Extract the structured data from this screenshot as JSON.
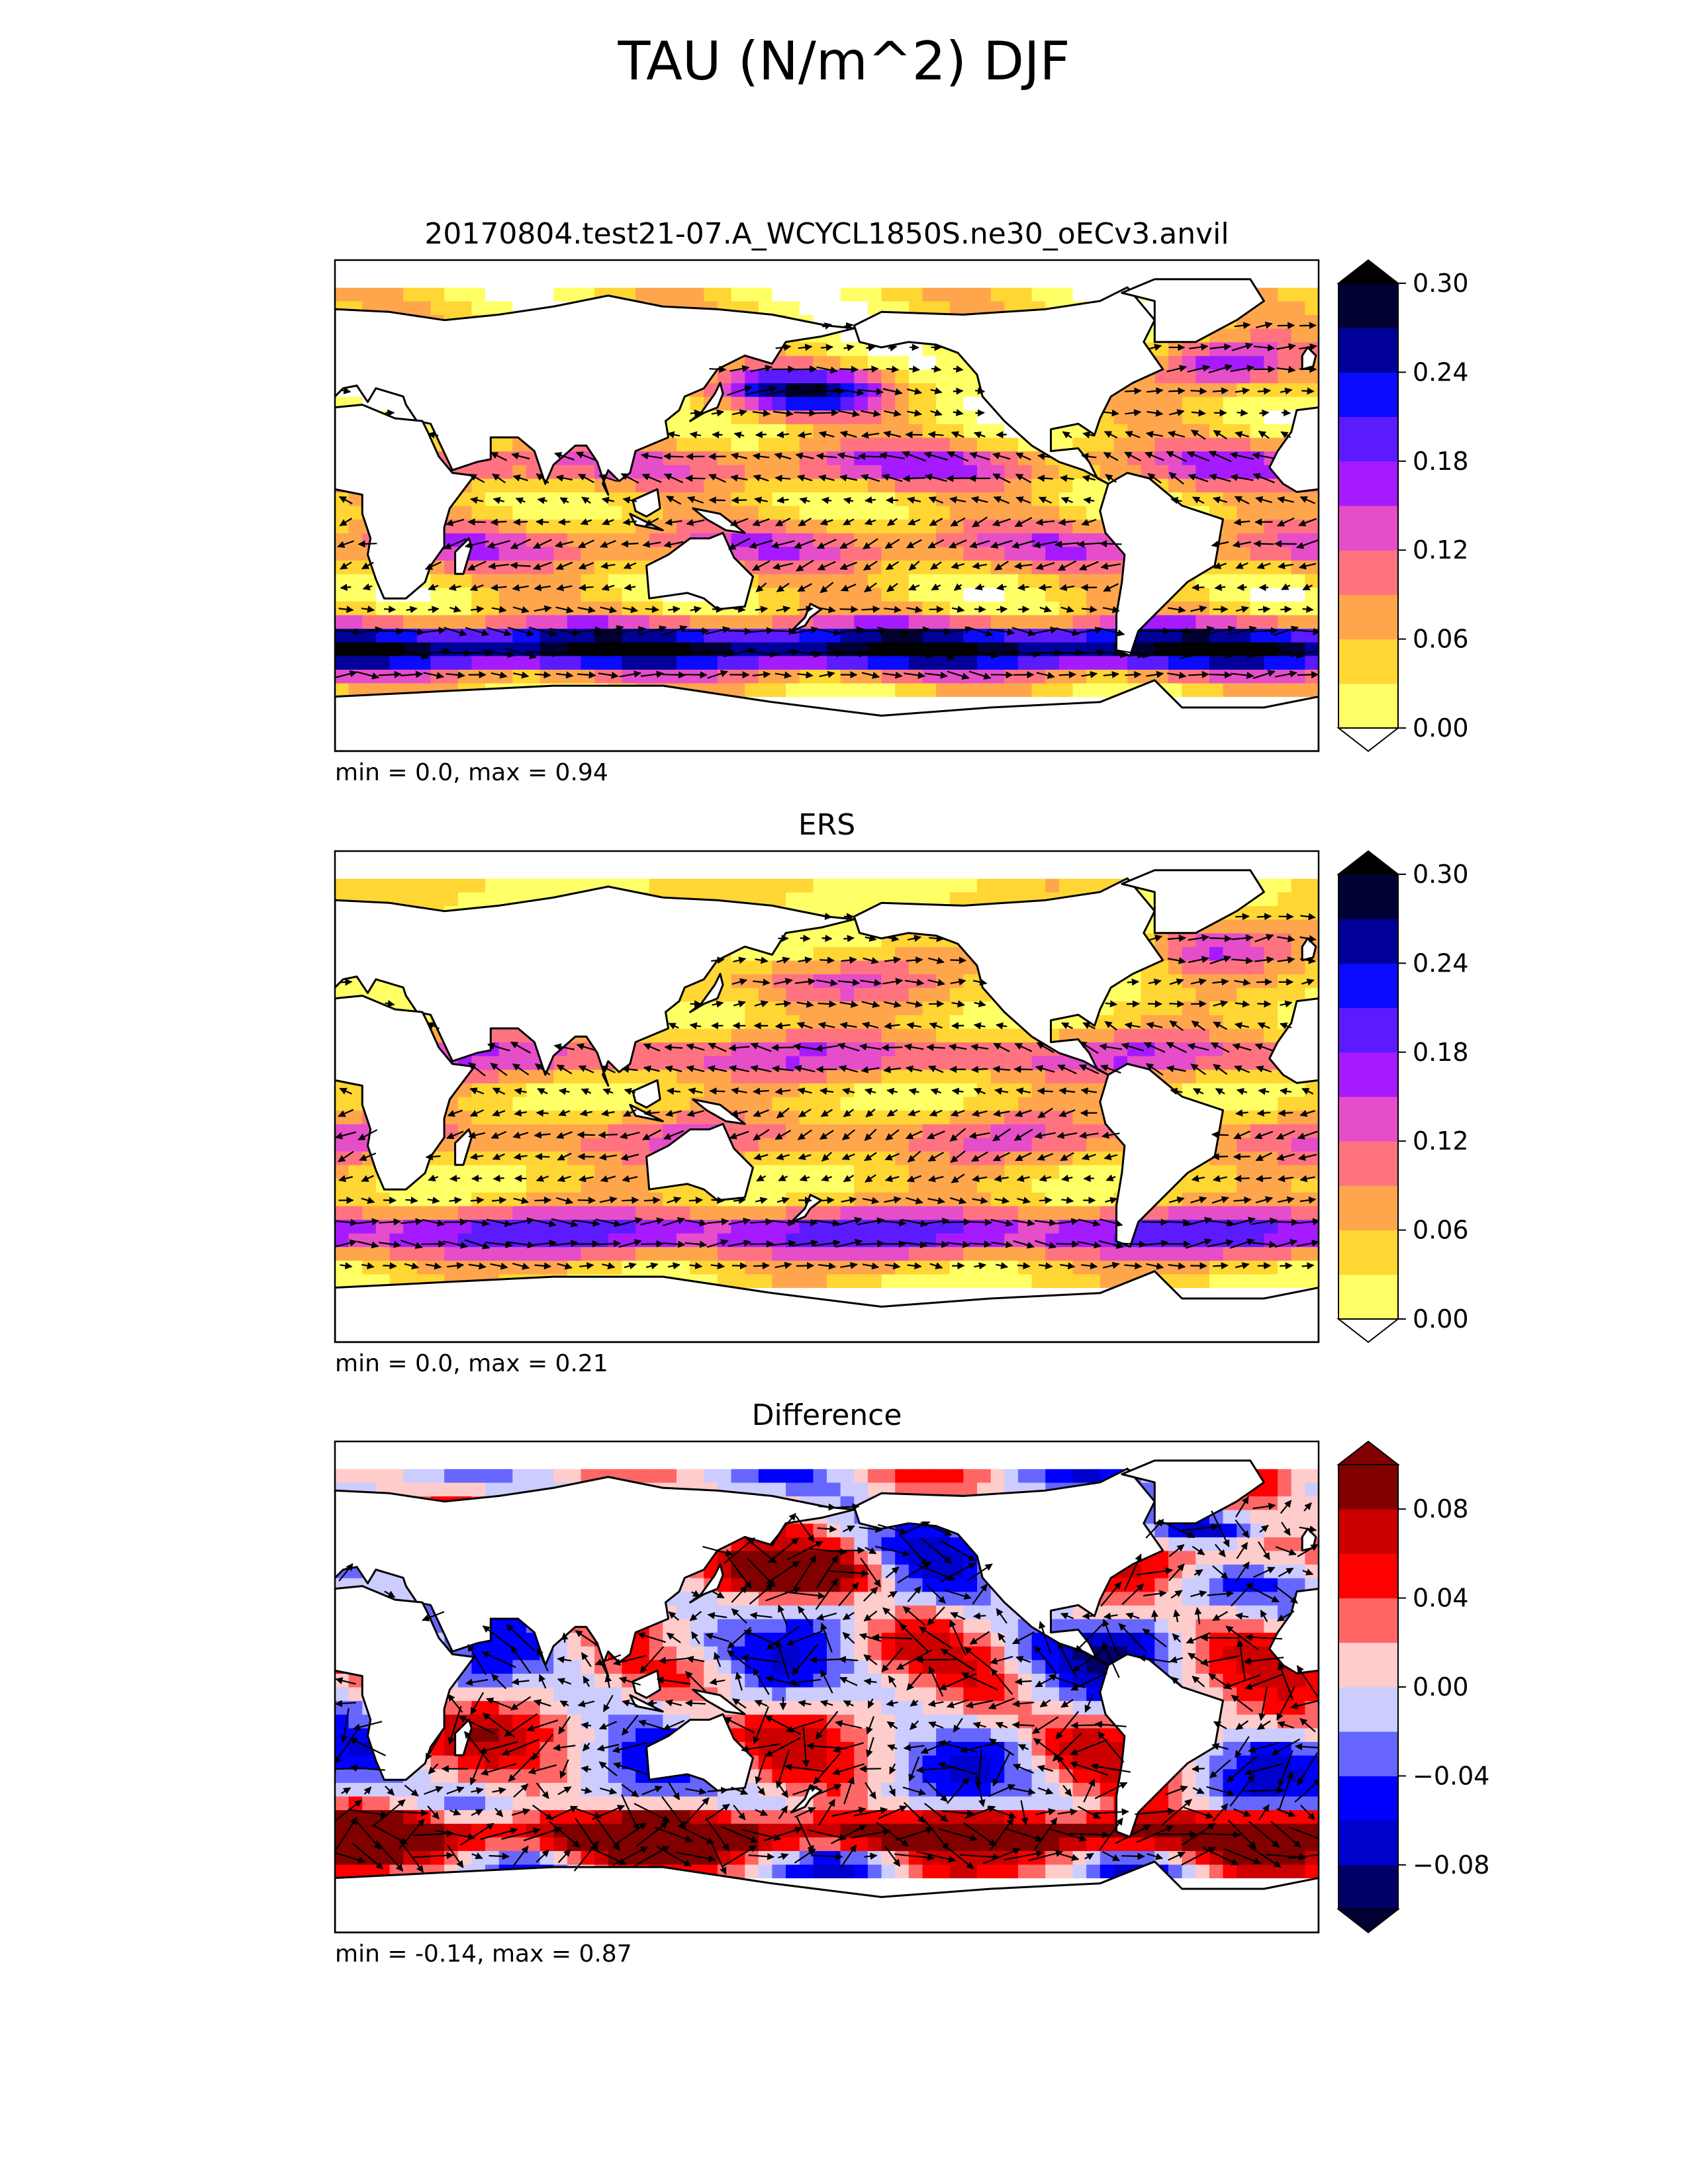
{
  "figure": {
    "title": "TAU (N/m^2) DJF"
  },
  "colors": {
    "seq_under": "#ffffff",
    "seq_over": "#000000",
    "seq_levels": [
      "#ffff66",
      "#ffd633",
      "#ffa64d",
      "#ff7380",
      "#e64dc8",
      "#a61aff",
      "#5c1aff",
      "#0a0aff",
      "#000099",
      "#000033"
    ],
    "div_under": "#000033",
    "div_over": "#800000",
    "div_levels": [
      "#000066",
      "#0000cc",
      "#0000ff",
      "#6666ff",
      "#ccccff",
      "#ffcccc",
      "#ff6666",
      "#ff0000",
      "#cc0000",
      "#800000"
    ],
    "land": "#ffffff",
    "coast": "#000000"
  },
  "chart_data": [
    {
      "type": "heatmap",
      "title": "20170804.test21-07.A_WCYCL1850S.ne30_oECv3.anvil",
      "stats": "min = 0.0, max = 0.94",
      "min": 0.0,
      "max": 0.94,
      "colorbar": {
        "ticks": [
          "0.00",
          "0.06",
          "0.12",
          "0.18",
          "0.24",
          "0.30"
        ],
        "range": [
          0.0,
          0.3
        ],
        "levels": 10,
        "extend": "both",
        "scale": "sequential"
      }
    },
    {
      "type": "heatmap",
      "title": "ERS",
      "stats": "min = 0.0, max = 0.21",
      "min": 0.0,
      "max": 0.21,
      "colorbar": {
        "ticks": [
          "0.00",
          "0.06",
          "0.12",
          "0.18",
          "0.24",
          "0.30"
        ],
        "range": [
          0.0,
          0.3
        ],
        "levels": 10,
        "extend": "both",
        "scale": "sequential"
      }
    },
    {
      "type": "heatmap",
      "title": "Difference",
      "stats": "min = -0.14, max = 0.87",
      "min": -0.14,
      "max": 0.87,
      "colorbar": {
        "ticks": [
          "−0.08",
          "−0.04",
          "0.00",
          "0.04",
          "0.08"
        ],
        "tick_values": [
          -0.08,
          -0.04,
          0.0,
          0.04,
          0.08
        ],
        "range": [
          -0.1,
          0.1
        ],
        "levels": 10,
        "extend": "both",
        "scale": "diverging"
      }
    }
  ]
}
